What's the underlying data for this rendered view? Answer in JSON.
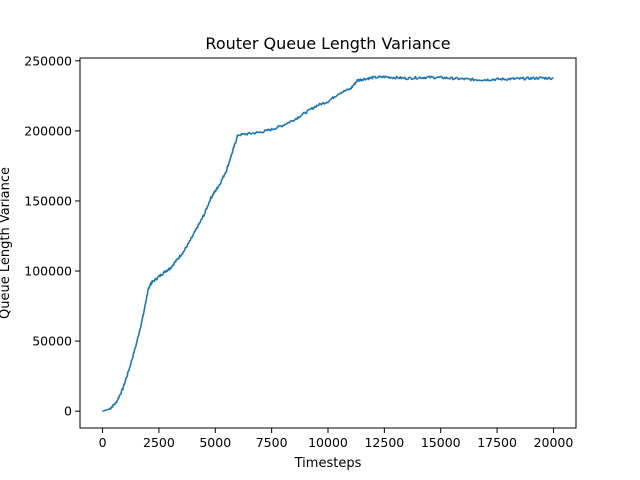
{
  "chart_data": {
    "type": "line",
    "title": "Router Queue Length Variance",
    "xlabel": "Timesteps",
    "ylabel": "Queue Length Variance",
    "xlim": [
      -1000,
      21000
    ],
    "ylim": [
      -12000,
      252000
    ],
    "xticks": [
      0,
      2500,
      5000,
      7500,
      10000,
      12500,
      15000,
      17500,
      20000
    ],
    "yticks": [
      0,
      50000,
      100000,
      150000,
      200000,
      250000
    ],
    "grid": false,
    "series": [
      {
        "color": "#1f77b4",
        "x": [
          0,
          300,
          600,
          900,
          1200,
          1500,
          1800,
          2000,
          2100,
          2200,
          2500,
          2800,
          3000,
          3300,
          3600,
          3900,
          4200,
          4500,
          4800,
          5000,
          5200,
          5500,
          5800,
          6000,
          6500,
          7000,
          7500,
          8000,
          8500,
          9000,
          9500,
          10000,
          10500,
          11000,
          11300,
          11600,
          12000,
          12500,
          13000,
          13500,
          14000,
          14500,
          15000,
          15500,
          16000,
          16500,
          17000,
          17500,
          18000,
          18500,
          19000,
          19500,
          20000
        ],
        "y": [
          0,
          1500,
          6000,
          16000,
          31000,
          48000,
          68000,
          85000,
          90000,
          92000,
          96000,
          100000,
          102000,
          108000,
          114000,
          122000,
          131000,
          140000,
          152000,
          157000,
          162000,
          172000,
          187000,
          197000,
          198000,
          199000,
          201000,
          204000,
          208000,
          213000,
          218000,
          221000,
          227000,
          230000,
          236000,
          237000,
          238000,
          238500,
          238000,
          237500,
          238000,
          238200,
          238000,
          237500,
          237000,
          236500,
          236500,
          236800,
          237000,
          237200,
          237500,
          237800,
          237500
        ]
      }
    ]
  }
}
